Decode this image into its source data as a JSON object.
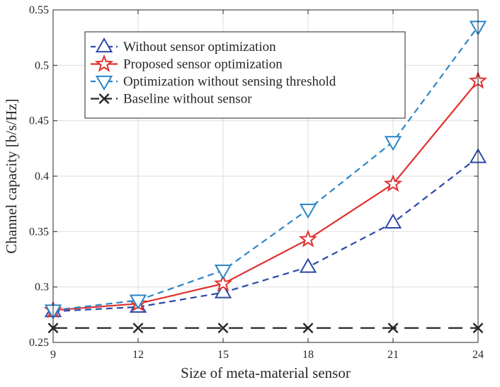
{
  "chart_data": {
    "type": "line",
    "xlabel": "Size of meta-material sensor",
    "ylabel": "Channel capacity [b/s/Hz]",
    "x": [
      9,
      12,
      15,
      18,
      21,
      24
    ],
    "xlim": [
      9,
      24
    ],
    "ylim": [
      0.25,
      0.55
    ],
    "xticks": [
      "9",
      "12",
      "15",
      "18",
      "21",
      "24"
    ],
    "yticks": [
      "0.25",
      "0.3",
      "0.35",
      "0.4",
      "0.45",
      "0.5",
      "0.55"
    ],
    "grid": true,
    "legend_position": "top-left",
    "series": [
      {
        "name": "Without sensor optimization",
        "values": [
          0.278,
          0.282,
          0.295,
          0.318,
          0.358,
          0.417
        ],
        "color": "#2b4aa8",
        "line_style": "dashed",
        "marker": "triangle-up"
      },
      {
        "name": "Proposed sensor optimization",
        "values": [
          0.279,
          0.285,
          0.303,
          0.343,
          0.393,
          0.486
        ],
        "color": "#e0312f",
        "line_style": "solid",
        "marker": "star"
      },
      {
        "name": "Optimization without sensing threshold",
        "values": [
          0.279,
          0.288,
          0.315,
          0.37,
          0.431,
          0.535
        ],
        "color": "#2a86c8",
        "line_style": "dashed",
        "marker": "triangle-down"
      },
      {
        "name": "Baseline without sensor",
        "values": [
          0.263,
          0.263,
          0.263,
          0.263,
          0.263,
          0.263
        ],
        "color": "#262626",
        "line_style": "long-dashed",
        "marker": "x"
      }
    ]
  }
}
